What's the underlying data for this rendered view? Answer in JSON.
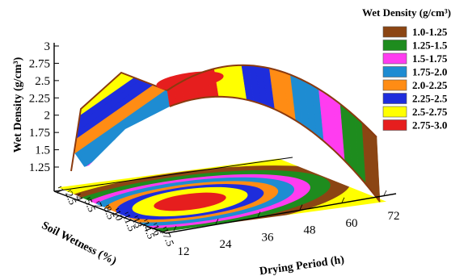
{
  "chart_data": {
    "type": "surface3d",
    "title": "",
    "xlabel": "Drying Period (h)",
    "ylabel": "Soil Wetness (%)",
    "zlabel": "Wet Density (g/cm³)",
    "x_ticks": [
      "12",
      "24",
      "36",
      "48",
      "60",
      "72"
    ],
    "y_ticks": [
      "1",
      "2.5",
      "4",
      "5.5",
      "7",
      "8.5",
      "10",
      "11.5",
      "13",
      "14.5",
      "16",
      "17.5"
    ],
    "z_ticks": [
      "1.25",
      "1.5",
      "1.75",
      "2",
      "2.25",
      "2.5",
      "2.75",
      "3"
    ],
    "zlim": [
      1.25,
      3.0
    ],
    "legend": {
      "title": "Wet Density (g/cm³)",
      "position": "right",
      "items": [
        {
          "label": "1.0-1.25",
          "color": "#8b4513"
        },
        {
          "label": "1.25-1.5",
          "color": "#1e8c1e"
        },
        {
          "label": "1.5-1.75",
          "color": "#ff3cf0"
        },
        {
          "label": "1.75-2.0",
          "color": "#1e8cd2"
        },
        {
          "label": "2.0-2.25",
          "color": "#ff8c14"
        },
        {
          "label": "2.25-2.5",
          "color": "#1e2ddc"
        },
        {
          "label": "2.5-2.75",
          "color": "#ffff00"
        },
        {
          "label": "2.75-3.0",
          "color": "#e61e1e"
        }
      ]
    },
    "surface_summary": {
      "peak_value": 3.0,
      "peak_location": {
        "drying_period_h": 30,
        "soil_wetness_pct": 9
      },
      "min_value": 1.0,
      "min_location": {
        "drying_period_h": 72,
        "soil_wetness_pct": 17.5
      },
      "has_projected_contour_on_floor": true
    }
  }
}
